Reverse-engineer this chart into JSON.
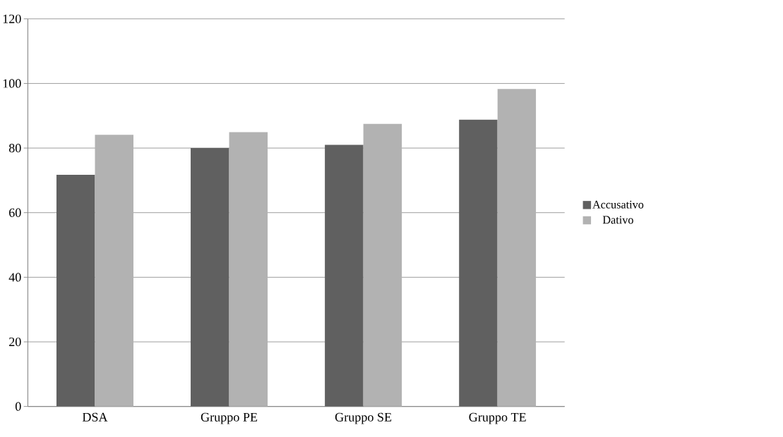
{
  "chart_data": {
    "type": "bar",
    "categories": [
      "DSA",
      "Gruppo PE",
      "Gruppo SE",
      "Gruppo TE"
    ],
    "series": [
      {
        "name": "Accusativo",
        "color": "#606060",
        "values": [
          71.7,
          80,
          81,
          88.8
        ]
      },
      {
        "name": "Dativo",
        "color": "#b2b2b2",
        "values": [
          84.1,
          84.9,
          87.5,
          98.3
        ]
      }
    ],
    "ylim": [
      0,
      120
    ],
    "yticks": [
      0,
      20,
      40,
      60,
      80,
      100,
      120
    ],
    "grid": "y",
    "legend": "right"
  }
}
